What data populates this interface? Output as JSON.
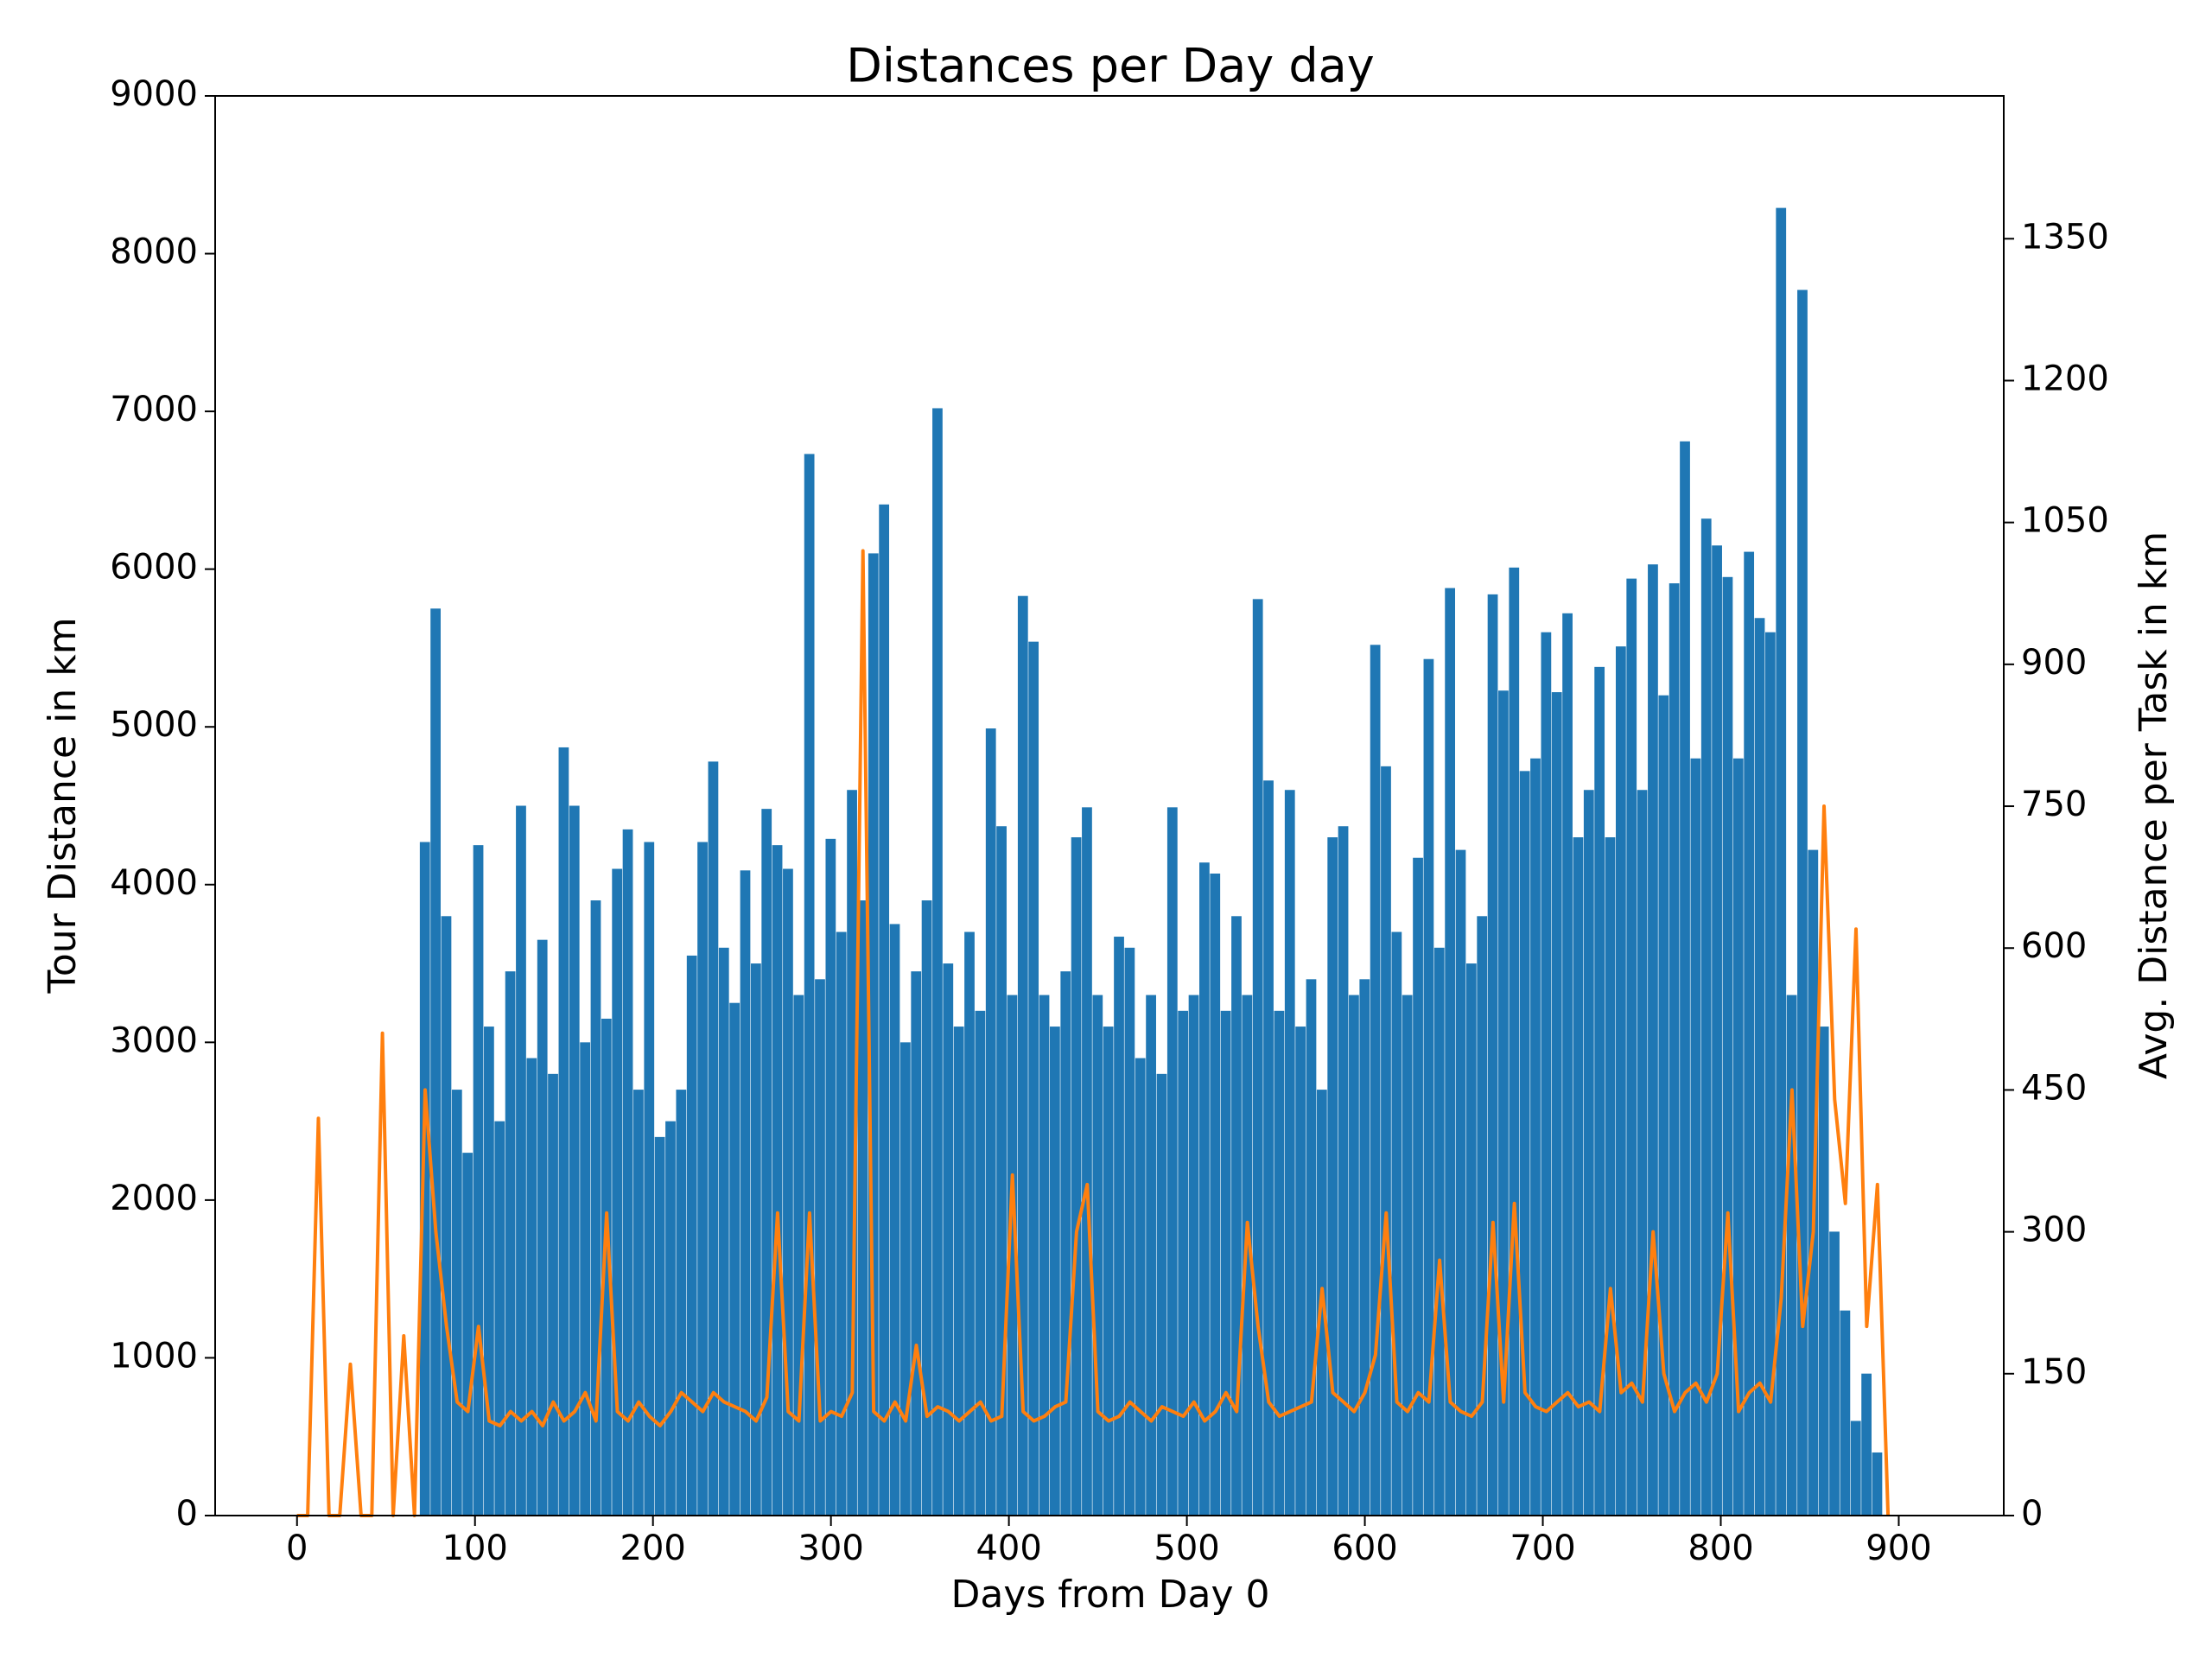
{
  "chart_data": {
    "type": "bar_line",
    "title": "Distances per Day day",
    "x_label": "Days from Day 0",
    "y_label": "Tour Distance in km",
    "y2_label": "Avg. Distance per Task in km",
    "x": [
      0,
      6,
      12,
      18,
      24,
      30,
      36,
      42,
      48,
      54,
      60,
      66,
      72,
      78,
      84,
      90,
      96,
      102,
      108,
      114,
      120,
      126,
      132,
      138,
      144,
      150,
      156,
      162,
      168,
      174,
      180,
      186,
      192,
      198,
      204,
      210,
      216,
      222,
      228,
      234,
      240,
      246,
      252,
      258,
      264,
      270,
      276,
      282,
      288,
      294,
      300,
      306,
      312,
      318,
      324,
      330,
      336,
      342,
      348,
      354,
      360,
      366,
      372,
      378,
      384,
      390,
      396,
      402,
      408,
      414,
      420,
      426,
      432,
      438,
      444,
      450,
      456,
      462,
      468,
      474,
      480,
      486,
      492,
      498,
      504,
      510,
      516,
      522,
      528,
      534,
      540,
      546,
      552,
      558,
      564,
      570,
      576,
      582,
      588,
      594,
      600,
      606,
      612,
      618,
      624,
      630,
      636,
      642,
      648,
      654,
      660,
      666,
      672,
      678,
      684,
      690,
      696,
      702,
      708,
      714,
      720,
      726,
      732,
      738,
      744,
      750,
      756,
      762,
      768,
      774,
      780,
      786,
      792,
      798,
      804,
      810,
      816,
      822,
      828,
      834,
      840,
      846,
      852,
      858,
      864,
      870,
      876,
      882,
      888,
      894
    ],
    "series": [
      {
        "name": "Tour Distance in km",
        "kind": "bar",
        "color": "#1f77b4",
        "values": [
          0,
          0,
          0,
          0,
          0,
          0,
          0,
          0,
          0,
          0,
          0,
          0,
          4270,
          5750,
          3800,
          2700,
          2300,
          4250,
          3100,
          2500,
          3450,
          4500,
          2900,
          3650,
          2800,
          4870,
          4500,
          3000,
          3900,
          3150,
          4100,
          4350,
          2700,
          4270,
          2400,
          2500,
          2700,
          3550,
          4270,
          4780,
          3600,
          3250,
          4090,
          3500,
          4480,
          4250,
          4100,
          3300,
          6730,
          3400,
          4290,
          3700,
          4600,
          3900,
          6100,
          6410,
          3750,
          3000,
          3450,
          3900,
          7020,
          3500,
          3100,
          3700,
          3200,
          4990,
          4370,
          3300,
          5830,
          5540,
          3300,
          3100,
          3450,
          4300,
          4490,
          3300,
          3100,
          3670,
          3600,
          2900,
          3300,
          2800,
          4490,
          3200,
          3300,
          4140,
          4070,
          3200,
          3800,
          3300,
          5810,
          4660,
          3200,
          4600,
          3100,
          3400,
          2700,
          4300,
          4370,
          3300,
          3400,
          5520,
          4750,
          3700,
          3300,
          4170,
          5430,
          3600,
          5880,
          4220,
          3500,
          3800,
          5840,
          5230,
          6010,
          4720,
          4800,
          5600,
          5220,
          5720,
          4300,
          4600,
          5380,
          4300,
          5510,
          5940,
          4600,
          6030,
          5200,
          5910,
          6810,
          4800,
          6320,
          6150,
          5950,
          4800,
          6110,
          5690,
          5600,
          8290,
          3300,
          7770,
          4220,
          3100,
          1800,
          1300,
          600,
          900,
          400,
          0
        ]
      },
      {
        "name": "Avg. Distance per Task in km",
        "kind": "line",
        "axis": "y2",
        "color": "#ff7f0e",
        "values": [
          0,
          0,
          420,
          0,
          0,
          160,
          0,
          0,
          510,
          0,
          190,
          0,
          450,
          300,
          200,
          120,
          110,
          200,
          100,
          95,
          110,
          100,
          110,
          95,
          120,
          100,
          110,
          130,
          100,
          320,
          110,
          100,
          120,
          105,
          95,
          110,
          130,
          120,
          110,
          130,
          120,
          115,
          110,
          100,
          125,
          320,
          110,
          100,
          320,
          100,
          110,
          105,
          130,
          1020,
          110,
          100,
          120,
          100,
          180,
          105,
          115,
          110,
          100,
          110,
          120,
          100,
          105,
          360,
          110,
          100,
          105,
          115,
          120,
          300,
          350,
          110,
          100,
          105,
          120,
          110,
          100,
          115,
          110,
          105,
          120,
          100,
          110,
          130,
          110,
          310,
          200,
          120,
          105,
          110,
          115,
          120,
          240,
          130,
          120,
          110,
          130,
          170,
          320,
          120,
          110,
          130,
          120,
          270,
          120,
          110,
          105,
          120,
          310,
          120,
          330,
          130,
          115,
          110,
          120,
          130,
          115,
          120,
          110,
          240,
          130,
          140,
          120,
          300,
          150,
          110,
          130,
          140,
          120,
          150,
          320,
          110,
          130,
          140,
          120,
          230,
          450,
          200,
          300,
          750,
          440,
          330,
          620,
          200,
          350,
          0
        ]
      }
    ],
    "xlim": [
      -46,
      959
    ],
    "xticks": [
      0,
      100,
      200,
      300,
      400,
      500,
      600,
      700,
      800,
      900
    ],
    "ylim": [
      0,
      9000
    ],
    "yticks": [
      0,
      1000,
      2000,
      3000,
      4000,
      5000,
      6000,
      7000,
      8000,
      9000
    ],
    "y2lim": [
      0,
      1501
    ],
    "y2ticks": [
      0,
      150,
      300,
      450,
      600,
      750,
      900,
      1050,
      1200,
      1350
    ]
  }
}
